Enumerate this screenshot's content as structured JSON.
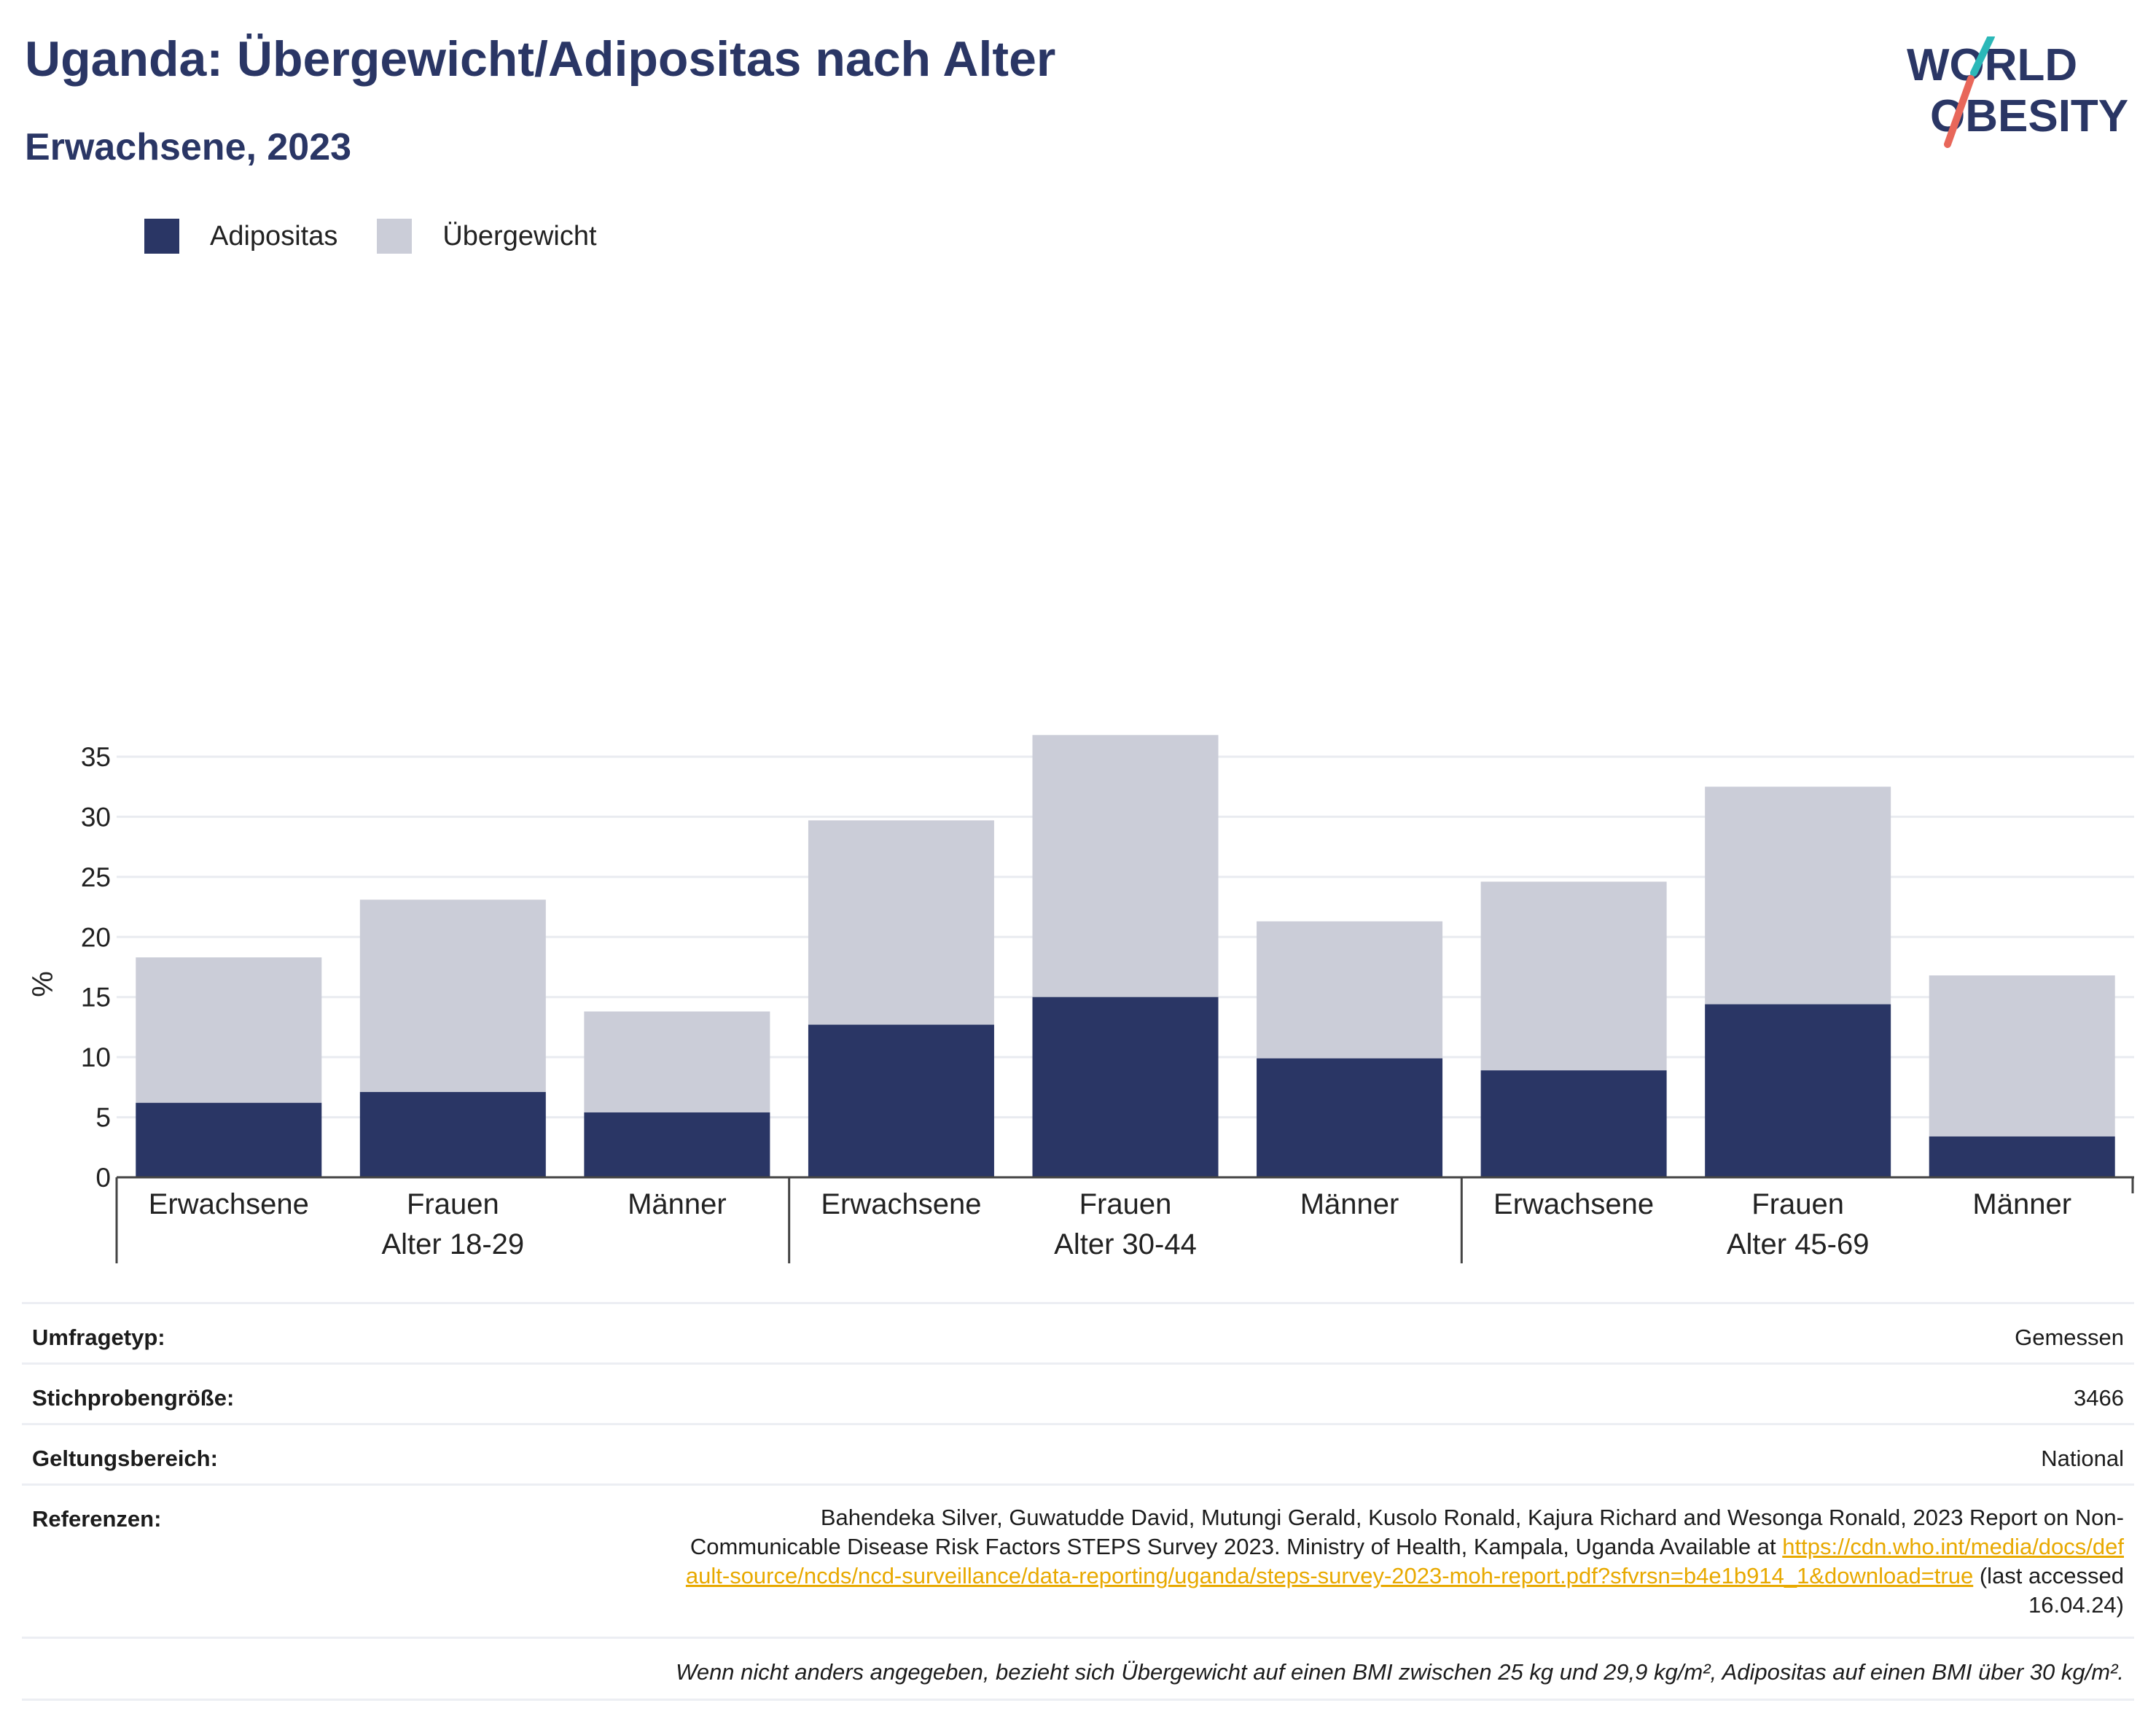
{
  "header": {
    "title": "Uganda: Übergewicht/Adipositas nach Alter",
    "subtitle": "Erwachsene, 2023"
  },
  "logo": {
    "line1": "WORLD",
    "line2": "OBESITY",
    "colors": {
      "text": "#2a3665",
      "slash_top": "#2bb8b8",
      "slash_bottom": "#e8675a"
    }
  },
  "colors": {
    "adipositas": "#2a3665",
    "uebergewicht": "#cbcdd8",
    "grid": "#e9ebf0",
    "axis": "#444444"
  },
  "chart_data": {
    "type": "bar",
    "stacked": true,
    "ylabel": "%",
    "ylim": [
      0,
      37
    ],
    "yticks": [
      0,
      5,
      10,
      15,
      20,
      25,
      30,
      35
    ],
    "grid": true,
    "legend_position": "top-left",
    "groups": [
      {
        "label": "Alter 18-29",
        "categories": [
          "Erwachsene",
          "Frauen",
          "Männer"
        ]
      },
      {
        "label": "Alter 30-44",
        "categories": [
          "Erwachsene",
          "Frauen",
          "Männer"
        ]
      },
      {
        "label": "Alter 45-69",
        "categories": [
          "Erwachsene",
          "Frauen",
          "Männer"
        ]
      }
    ],
    "series": [
      {
        "name": "Adipositas",
        "color": "#2a3665",
        "values": [
          6.2,
          7.1,
          5.4,
          12.7,
          15.0,
          9.9,
          8.9,
          14.4,
          3.4
        ]
      },
      {
        "name": "Übergewicht",
        "color": "#cbcdd8",
        "values": [
          12.1,
          16.0,
          8.4,
          17.0,
          21.8,
          11.4,
          15.7,
          18.1,
          13.4
        ]
      }
    ]
  },
  "info": {
    "survey_type_label": "Umfragetyp:",
    "survey_type_value": "Gemessen",
    "sample_size_label": "Stichprobengröße:",
    "sample_size_value": "3466",
    "scope_label": "Geltungsbereich:",
    "scope_value": "National",
    "references_label": "Referenzen:",
    "references_text": "Bahendeka Silver, Guwatudde David, Mutungi Gerald, Kusolo Ronald, Kajura Richard and Wesonga Ronald, 2023 Report on Non-Communicable Disease Risk Factors STEPS Survey 2023. Ministry of Health, Kampala, Uganda Available at",
    "references_link": "https://cdn.who.int/media/docs/default-source/ncds/ncd-surveillance/data-reporting/uganda/steps-survey-2023-moh-report.pdf?sfvrsn=b4e1b914_1&download=true",
    "references_accessed": "(last accessed 16.04.24)",
    "note": "Wenn nicht anders angegeben, bezieht sich Übergewicht auf einen BMI zwischen 25 kg und 29,9 kg/m², Adipositas auf einen BMI über 30 kg/m²."
  }
}
